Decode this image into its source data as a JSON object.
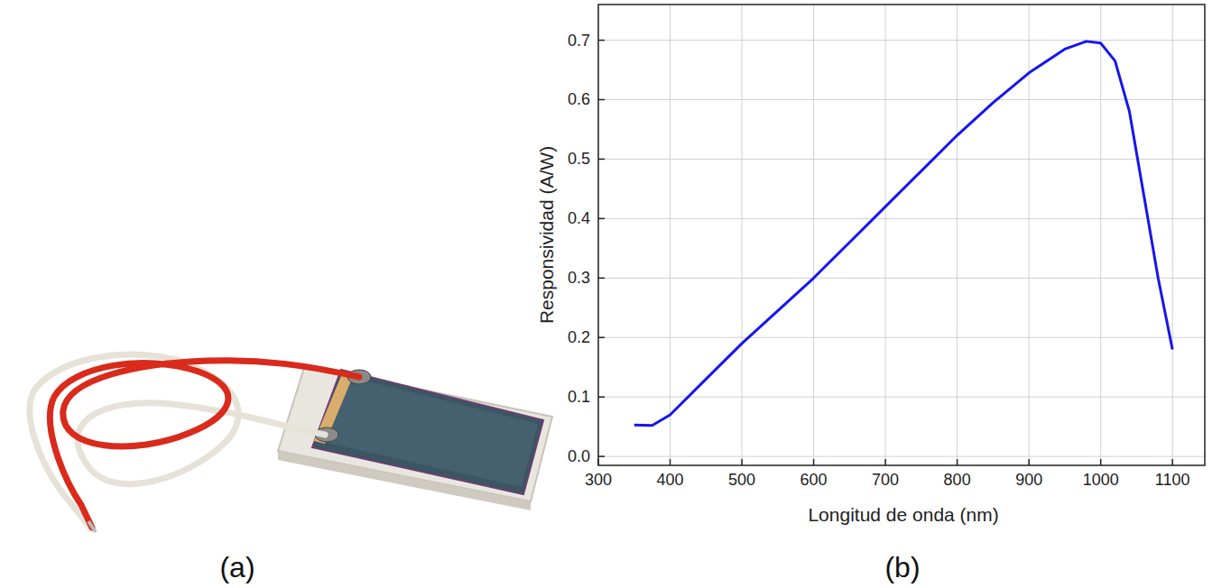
{
  "panel_labels": [
    "(a)",
    "(b)"
  ],
  "chart_data": {
    "type": "line",
    "x_label": "Longitud de onda (nm)",
    "y_label": "Responsividad (A/W)",
    "x": [
      350,
      375,
      400,
      450,
      500,
      550,
      600,
      650,
      700,
      750,
      800,
      850,
      900,
      950,
      980,
      1000,
      1020,
      1040,
      1060,
      1080,
      1100
    ],
    "values": [
      0.053,
      0.052,
      0.07,
      0.13,
      0.19,
      0.245,
      0.3,
      0.36,
      0.42,
      0.48,
      0.54,
      0.595,
      0.645,
      0.685,
      0.698,
      0.695,
      0.665,
      0.58,
      0.44,
      0.3,
      0.18
    ],
    "color": "#1515f0",
    "xlim": [
      300,
      1145
    ],
    "xticks": [
      300,
      400,
      500,
      600,
      700,
      800,
      900,
      1000,
      1100
    ],
    "ylim": [
      -0.015,
      0.76
    ],
    "yticks": [
      {
        "value": 0,
        "label": "0.0"
      },
      0.1,
      0.2,
      0.3,
      0.4,
      0.5,
      0.6,
      0.7
    ],
    "grid": true
  }
}
